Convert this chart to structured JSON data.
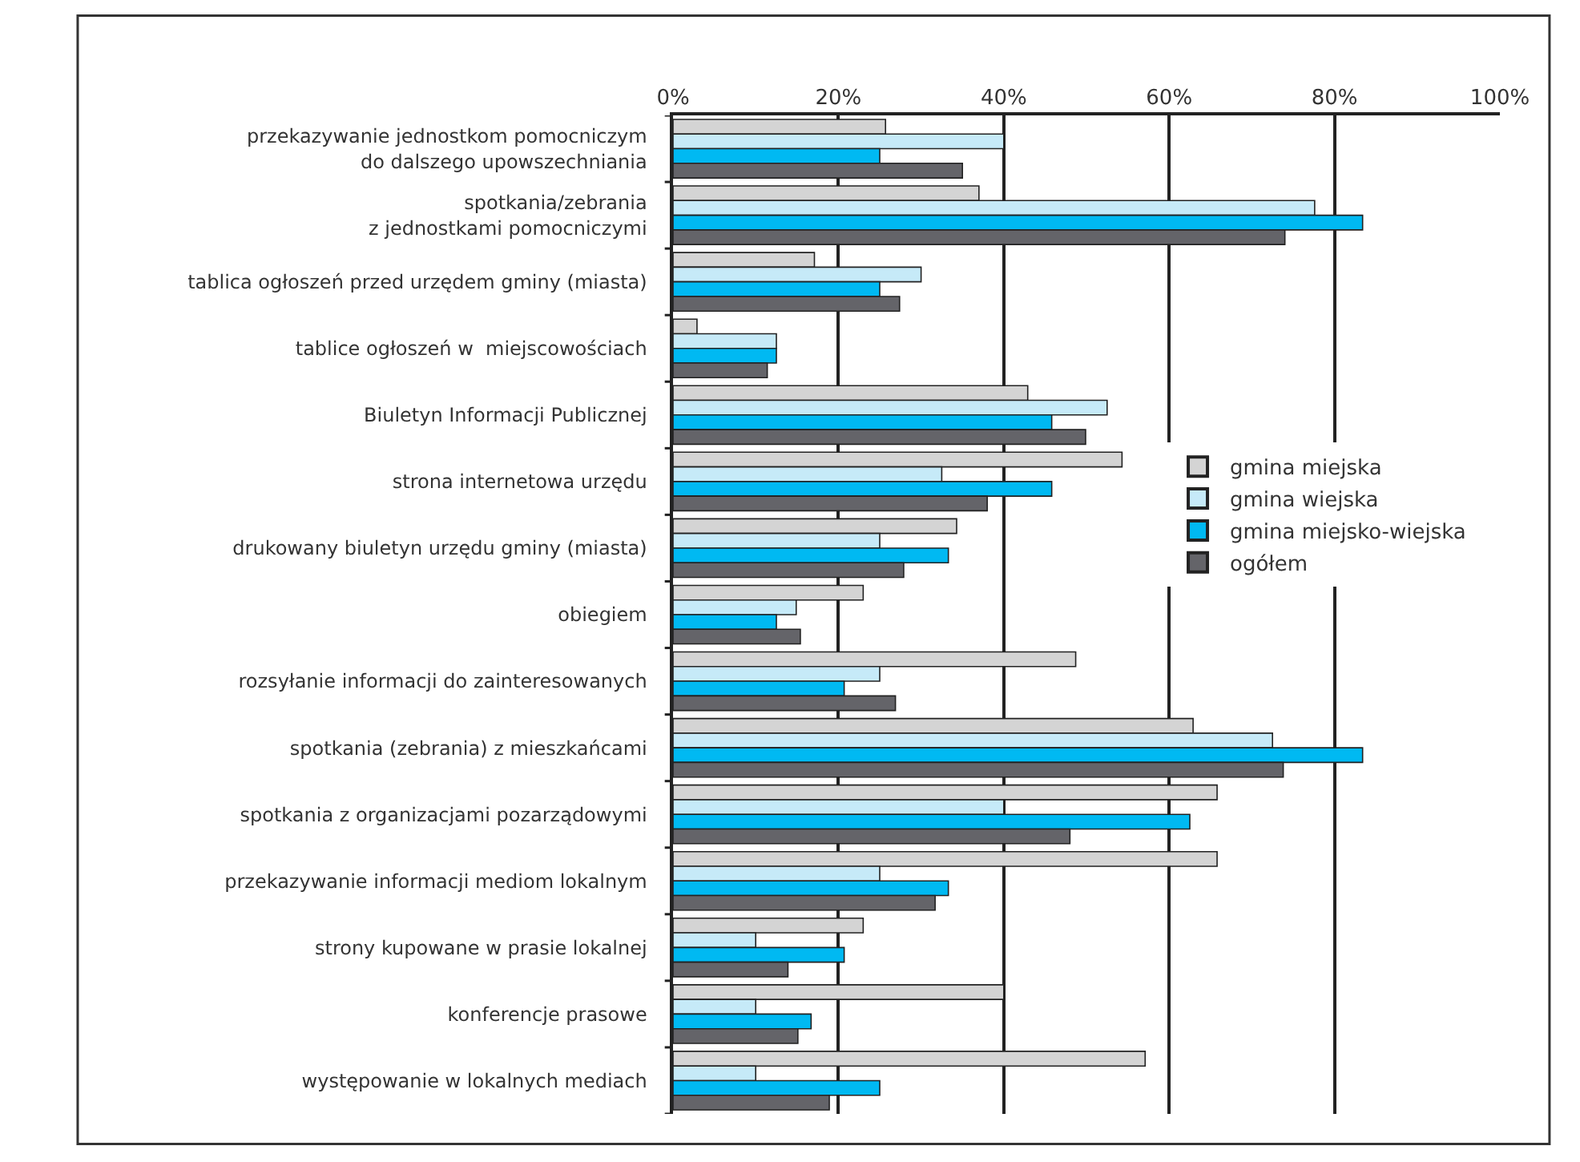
{
  "chart_data": {
    "type": "bar",
    "orientation": "horizontal",
    "categories": [
      "przekazywanie jednostkom pomocniczym\ndo dalszego upowszechniania",
      "spotkania/zebrania\nz jednostkami pomocniczymi",
      "tablica ogłoszeń przed urzędem gminy (miasta)",
      "tablice ogłoszeń w  miejscowościach",
      "Biuletyn Informacji Publicznej",
      "strona internetowa urzędu",
      "drukowany biuletyn urzędu gminy (miasta)",
      "obiegiem",
      "rozsyłanie informacji do zainteresowanych",
      "spotkania (zebrania) z mieszkańcami",
      "spotkania z organizacjami pozarządowymi",
      "przekazywanie informacji mediom lokalnym",
      "strony kupowane w prasie lokalnej",
      "konferencje prasowe",
      "występowanie w lokalnych mediach"
    ],
    "series": [
      {
        "name": "gmina miejska",
        "color": "#d4d4d4",
        "values": [
          25.7,
          37,
          17.1,
          2.9,
          42.9,
          54.3,
          34.3,
          23,
          48.7,
          62.9,
          65.8,
          65.8,
          23,
          40,
          57.1
        ]
      },
      {
        "name": "gmina wiejska",
        "color": "#c6eaf8",
        "values": [
          40,
          77.6,
          30,
          12.5,
          52.5,
          32.5,
          25,
          14.9,
          25,
          72.5,
          40,
          25,
          10,
          10,
          10
        ]
      },
      {
        "name": "gmina miejsko-wiejska",
        "color": "#00b9f2",
        "values": [
          25,
          83.4,
          25,
          12.5,
          45.8,
          45.8,
          33.3,
          12.5,
          20.7,
          83.4,
          62.5,
          33.3,
          20.7,
          16.7,
          25
        ]
      },
      {
        "name": "ogółem",
        "color": "#646469",
        "values": [
          35,
          74,
          27.4,
          11.4,
          49.9,
          38,
          27.9,
          15.4,
          26.9,
          73.8,
          48,
          31.7,
          13.9,
          15.1,
          18.9
        ]
      }
    ],
    "xlim": [
      0,
      100
    ],
    "xticks": [
      {
        "value": 0,
        "label": "0%"
      },
      {
        "value": 20,
        "label": "20%"
      },
      {
        "value": 40,
        "label": "40%"
      },
      {
        "value": 60,
        "label": "60%"
      },
      {
        "value": 80,
        "label": "80%"
      },
      {
        "value": 100,
        "label": "100%"
      }
    ],
    "grid": "x",
    "legend": "right"
  }
}
